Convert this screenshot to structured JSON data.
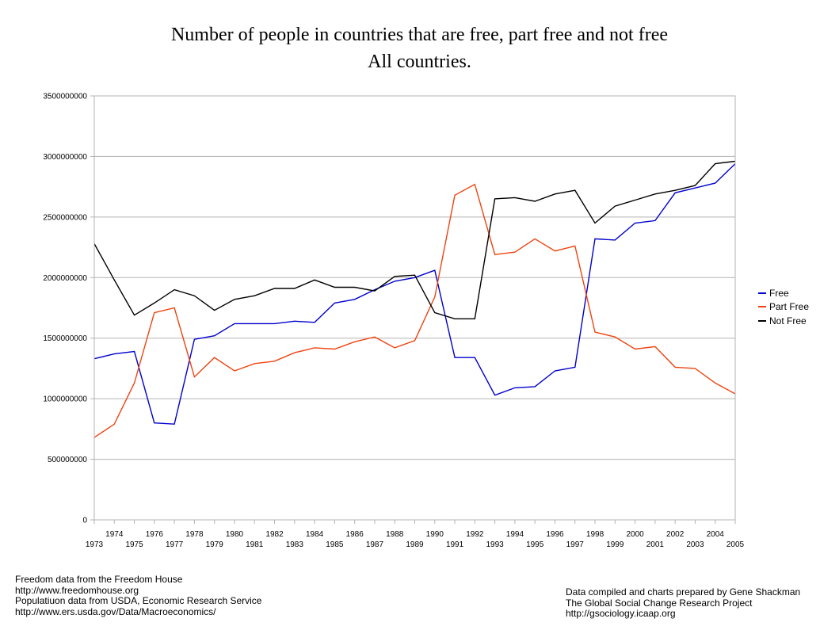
{
  "chart_data": {
    "type": "line",
    "title": "Number of people in countries that are free, part free and not free",
    "subtitle": "All countries.",
    "xlabel": "",
    "ylabel": "",
    "ylim": [
      0,
      3500000000
    ],
    "yticks": [
      0,
      500000000,
      1000000000,
      1500000000,
      2000000000,
      2500000000,
      3000000000,
      3500000000
    ],
    "ytick_labels": [
      "0",
      "500000000",
      "1000000000",
      "1500000000",
      "2000000000",
      "2500000000",
      "3000000000",
      "3500000000"
    ],
    "categories": [
      "1973",
      "1974",
      "1975",
      "1976",
      "1977",
      "1978",
      "1979",
      "1980",
      "1981",
      "1982",
      "1983",
      "1984",
      "1985",
      "1986",
      "1987",
      "1988",
      "1989",
      "1990",
      "1991",
      "1992",
      "1993",
      "1994",
      "1995",
      "1996",
      "1997",
      "1998",
      "1999",
      "2000",
      "2001",
      "2002",
      "2003",
      "2004",
      "2005"
    ],
    "grid": true,
    "legend_position": "right",
    "series": [
      {
        "name": "Free",
        "color": "#0000cc",
        "values": [
          1330000000,
          1370000000,
          1390000000,
          800000000,
          790000000,
          1490000000,
          1520000000,
          1620000000,
          1620000000,
          1620000000,
          1640000000,
          1630000000,
          1790000000,
          1820000000,
          1900000000,
          1970000000,
          2000000000,
          2060000000,
          1340000000,
          1340000000,
          1030000000,
          1090000000,
          1100000000,
          1230000000,
          1260000000,
          2320000000,
          2310000000,
          2450000000,
          2470000000,
          2700000000,
          2740000000,
          2780000000,
          2940000000
        ]
      },
      {
        "name": "Part Free",
        "color": "#ee4411",
        "values": [
          680000000,
          790000000,
          1130000000,
          1710000000,
          1750000000,
          1180000000,
          1340000000,
          1230000000,
          1290000000,
          1310000000,
          1380000000,
          1420000000,
          1410000000,
          1470000000,
          1510000000,
          1420000000,
          1480000000,
          1840000000,
          2680000000,
          2770000000,
          2190000000,
          2210000000,
          2320000000,
          2220000000,
          2260000000,
          1550000000,
          1510000000,
          1410000000,
          1430000000,
          1260000000,
          1250000000,
          1130000000,
          1040000000
        ]
      },
      {
        "name": "Not Free",
        "color": "#000000",
        "values": [
          2280000000,
          1980000000,
          1690000000,
          1790000000,
          1900000000,
          1850000000,
          1730000000,
          1820000000,
          1850000000,
          1910000000,
          1910000000,
          1980000000,
          1920000000,
          1920000000,
          1890000000,
          2010000000,
          2020000000,
          1710000000,
          1660000000,
          1660000000,
          2650000000,
          2660000000,
          2630000000,
          2690000000,
          2720000000,
          2450000000,
          2590000000,
          2640000000,
          2690000000,
          2720000000,
          2760000000,
          2940000000,
          2960000000
        ]
      }
    ]
  },
  "notes": {
    "left": "Freedom data from the Freedom House\nhttp://www.freedomhouse.org\nPopulatiuon data from USDA, Economic Research Service\nhttp://www.ers.usda.gov/Data/Macroeconomics/",
    "right": "Data compiled and charts prepared by Gene Shackman\nThe Global Social Change Research Project\nhttp://gsociology.icaap.org"
  }
}
